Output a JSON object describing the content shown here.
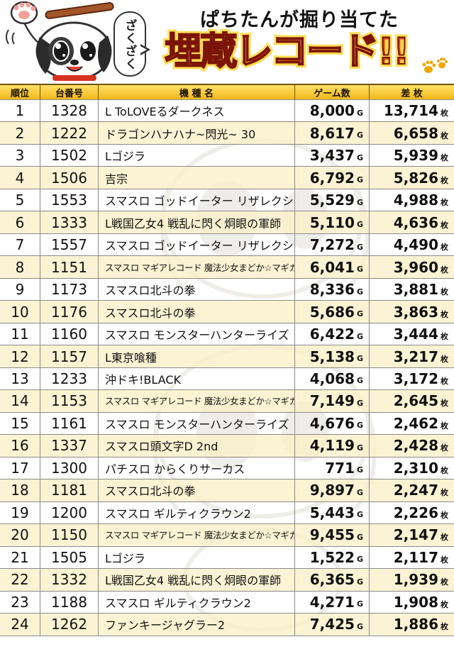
{
  "header": {
    "subtitle": "ぱちたんが掘り当てた",
    "title": "埋蔵レコード!!",
    "bubble": "ざくざく",
    "colors": {
      "title_red": "#d23a1d",
      "title_gold": "#ffcc33",
      "header_gold": "#f2b81a"
    }
  },
  "table": {
    "columns": {
      "rank": "順位",
      "machine_no": "台番号",
      "name": "機 種 名",
      "games": "ゲーム数",
      "diff": "差 枚"
    },
    "unit_games": "G",
    "unit_diff": "枚",
    "rows": [
      {
        "rank": "1",
        "machine_no": "1328",
        "name": "L ToLOVEるダークネス",
        "games": "8,000",
        "diff": "13,714"
      },
      {
        "rank": "2",
        "machine_no": "1222",
        "name": "ドラゴンハナハナ~閃光~ 30",
        "games": "8,617",
        "diff": "6,658"
      },
      {
        "rank": "3",
        "machine_no": "1502",
        "name": "Lゴジラ",
        "games": "3,437",
        "diff": "5,939"
      },
      {
        "rank": "4",
        "machine_no": "1506",
        "name": "吉宗",
        "games": "6,792",
        "diff": "5,826"
      },
      {
        "rank": "5",
        "machine_no": "1553",
        "name": "スマスロ ゴッドイーター リザレクション",
        "games": "5,529",
        "diff": "4,988"
      },
      {
        "rank": "6",
        "machine_no": "1333",
        "name": "L戦国乙女4 戦乱に閃く炯眼の軍師",
        "games": "5,110",
        "diff": "4,636"
      },
      {
        "rank": "7",
        "machine_no": "1557",
        "name": "スマスロ ゴッドイーター リザレクション",
        "games": "7,272",
        "diff": "4,490"
      },
      {
        "rank": "8",
        "machine_no": "1151",
        "name": "スマスロ マギアレコード 魔法少女まどか☆マギカ外伝",
        "games": "6,041",
        "diff": "3,960"
      },
      {
        "rank": "9",
        "machine_no": "1173",
        "name": "スマスロ北斗の拳",
        "games": "8,336",
        "diff": "3,881"
      },
      {
        "rank": "10",
        "machine_no": "1176",
        "name": "スマスロ北斗の拳",
        "games": "5,686",
        "diff": "3,863"
      },
      {
        "rank": "11",
        "machine_no": "1160",
        "name": "スマスロ モンスターハンターライズ",
        "games": "6,422",
        "diff": "3,444"
      },
      {
        "rank": "12",
        "machine_no": "1157",
        "name": "L東京喰種",
        "games": "5,138",
        "diff": "3,217"
      },
      {
        "rank": "13",
        "machine_no": "1233",
        "name": "沖ドキ!BLACK",
        "games": "4,068",
        "diff": "3,172"
      },
      {
        "rank": "14",
        "machine_no": "1153",
        "name": "スマスロ マギアレコード 魔法少女まどか☆マギカ外伝",
        "games": "7,149",
        "diff": "2,645"
      },
      {
        "rank": "15",
        "machine_no": "1161",
        "name": "スマスロ モンスターハンターライズ",
        "games": "4,676",
        "diff": "2,462"
      },
      {
        "rank": "16",
        "machine_no": "1337",
        "name": "スマスロ頭文字D 2nd",
        "games": "4,119",
        "diff": "2,428"
      },
      {
        "rank": "17",
        "machine_no": "1300",
        "name": "パチスロ からくりサーカス",
        "games": "771",
        "diff": "2,310"
      },
      {
        "rank": "18",
        "machine_no": "1181",
        "name": "スマスロ北斗の拳",
        "games": "9,897",
        "diff": "2,247"
      },
      {
        "rank": "19",
        "machine_no": "1200",
        "name": "スマスロ ギルティクラウン2",
        "games": "5,443",
        "diff": "2,226"
      },
      {
        "rank": "20",
        "machine_no": "1150",
        "name": "スマスロ マギアレコード 魔法少女まどか☆マギカ外伝",
        "games": "9,455",
        "diff": "2,147"
      },
      {
        "rank": "21",
        "machine_no": "1505",
        "name": "Lゴジラ",
        "games": "1,522",
        "diff": "2,117"
      },
      {
        "rank": "22",
        "machine_no": "1332",
        "name": "L戦国乙女4 戦乱に閃く炯眼の軍師",
        "games": "6,365",
        "diff": "1,939"
      },
      {
        "rank": "23",
        "machine_no": "1188",
        "name": "スマスロ ギルティクラウン2",
        "games": "4,271",
        "diff": "1,908"
      },
      {
        "rank": "24",
        "machine_no": "1262",
        "name": "ファンキージャグラー2",
        "games": "7,425",
        "diff": "1,886"
      }
    ]
  }
}
